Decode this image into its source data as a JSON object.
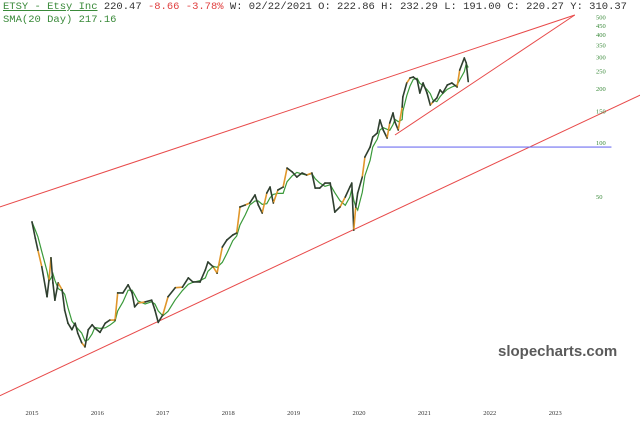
{
  "header": {
    "symbol": "ETSY - Etsy Inc",
    "last": "220.47",
    "change": "-8.66",
    "change_pct": "-3.78%",
    "date": "W: 02/22/2021",
    "open": "O: 222.86",
    "high": "H: 232.29",
    "low": "L: 191.00",
    "close": "C: 220.27",
    "year_high": "Y: 310.37",
    "sma": "SMA(20 Day) 217.16"
  },
  "watermark": "slopecharts.com",
  "colors": {
    "price": "#2f3f2f",
    "sma": "#3a9a3a",
    "trendline": "#e84a4a",
    "horizontal": "#7070f0",
    "highlight": "#e0962a"
  },
  "chart_data": {
    "type": "line",
    "scale": "log",
    "grid": false,
    "xlim": [
      2014.51,
      2024.3
    ],
    "ylim": [
      3.2,
      560
    ],
    "x_ticks": [
      "2015",
      "2016",
      "2017",
      "2018",
      "2019",
      "2020",
      "2021",
      "2022",
      "2023"
    ],
    "y_ticks": [
      "500",
      "450",
      "400",
      "350",
      "300",
      "250",
      "200",
      "150",
      "100",
      "50"
    ],
    "series": [
      {
        "x": [
          2015.0,
          2015.05,
          2015.09,
          2015.15,
          2015.23,
          2015.26,
          2015.29,
          2015.32,
          2015.35,
          2015.4,
          2015.46,
          2015.5,
          2015.55,
          2015.61,
          2015.66,
          2015.7,
          2015.76,
          2015.81,
          2015.86,
          2015.92,
          2015.96,
          2016.04,
          2016.12,
          2016.19,
          2016.27,
          2016.31,
          2016.39,
          2016.47,
          2016.53,
          2016.57,
          2016.62,
          2016.73,
          2016.83,
          2016.88,
          2016.93,
          2017.0,
          2017.08,
          2017.19,
          2017.3,
          2017.39,
          2017.46,
          2017.57,
          2017.65,
          2017.69,
          2017.77,
          2017.83,
          2017.91,
          2017.98,
          2018.07,
          2018.13,
          2018.18,
          2018.26,
          2018.33,
          2018.41,
          2018.46,
          2018.52,
          2018.59,
          2018.64,
          2018.69,
          2018.76,
          2018.84,
          2018.9,
          2018.98,
          2019.05,
          2019.13,
          2019.2,
          2019.28,
          2019.33,
          2019.4,
          2019.48,
          2019.56,
          2019.63,
          2019.71,
          2019.79,
          2019.86,
          2019.89,
          2019.92,
          2019.95,
          2019.98,
          2020.05,
          2020.09,
          2020.17,
          2020.21,
          2020.28,
          2020.32,
          2020.37,
          2020.43,
          2020.47,
          2020.52,
          2020.55,
          2020.6,
          2020.66,
          2020.67,
          2020.73,
          2020.78,
          2020.83,
          2020.89,
          2020.93,
          2020.98,
          2021.04,
          2021.09,
          2021.13,
          2021.19,
          2021.24,
          2021.28,
          2021.35,
          2021.42,
          2021.5,
          2021.54,
          2021.61,
          2021.64,
          2021.67
        ],
        "y": [
          36.3,
          29.5,
          25.3,
          20.4,
          13.9,
          17.2,
          22.9,
          16.6,
          13.3,
          16.6,
          15.2,
          11.7,
          9.9,
          9.1,
          9.9,
          8.7,
          7.7,
          7.3,
          9.1,
          9.7,
          9.3,
          8.8,
          9.9,
          10.3,
          10.3,
          14.6,
          14.6,
          16.2,
          14.6,
          12.2,
          12.8,
          13.0,
          13.3,
          11.7,
          10.0,
          11.0,
          13.9,
          15.6,
          15.7,
          17.7,
          16.8,
          16.8,
          19.6,
          21.7,
          20.4,
          18.8,
          26.3,
          28.8,
          30.7,
          31.5,
          44.0,
          45.1,
          46.3,
          51.3,
          45.1,
          40.7,
          52.6,
          56.8,
          46.3,
          54.7,
          56.8,
          72.5,
          68.9,
          64.6,
          68.0,
          66.3,
          68.0,
          56.1,
          56.1,
          59.8,
          59.8,
          41.2,
          44.0,
          50.0,
          56.8,
          59.8,
          32.7,
          44.0,
          52.6,
          64.6,
          83.5,
          95.0,
          108.0,
          113.7,
          134.3,
          118.2,
          106.6,
          129.3,
          147.0,
          130.9,
          118.2,
          158.7,
          180.4,
          216.0,
          230.3,
          233.3,
          224.5,
          190.0,
          216.0,
          190.0,
          162.9,
          169.3,
          178.2,
          197.5,
          190.0,
          210.6,
          216.0,
          205.3,
          255.2,
          297.8,
          279.3,
          220.3
        ]
      }
    ],
    "trendlines": [
      {
        "kind": "channel-upper",
        "from": [
          2014.51,
          44.0
        ],
        "to": [
          2023.3,
          517
        ]
      },
      {
        "kind": "channel-lower",
        "from": [
          2014.51,
          3.9
        ],
        "to": [
          2024.3,
          185
        ]
      },
      {
        "kind": "wedge-support",
        "from": [
          2020.55,
          110.8
        ],
        "to": [
          2023.3,
          517
        ]
      }
    ],
    "horizontal_line": {
      "value": 94.9,
      "from": 2020.28,
      "to": 2023.86
    }
  }
}
